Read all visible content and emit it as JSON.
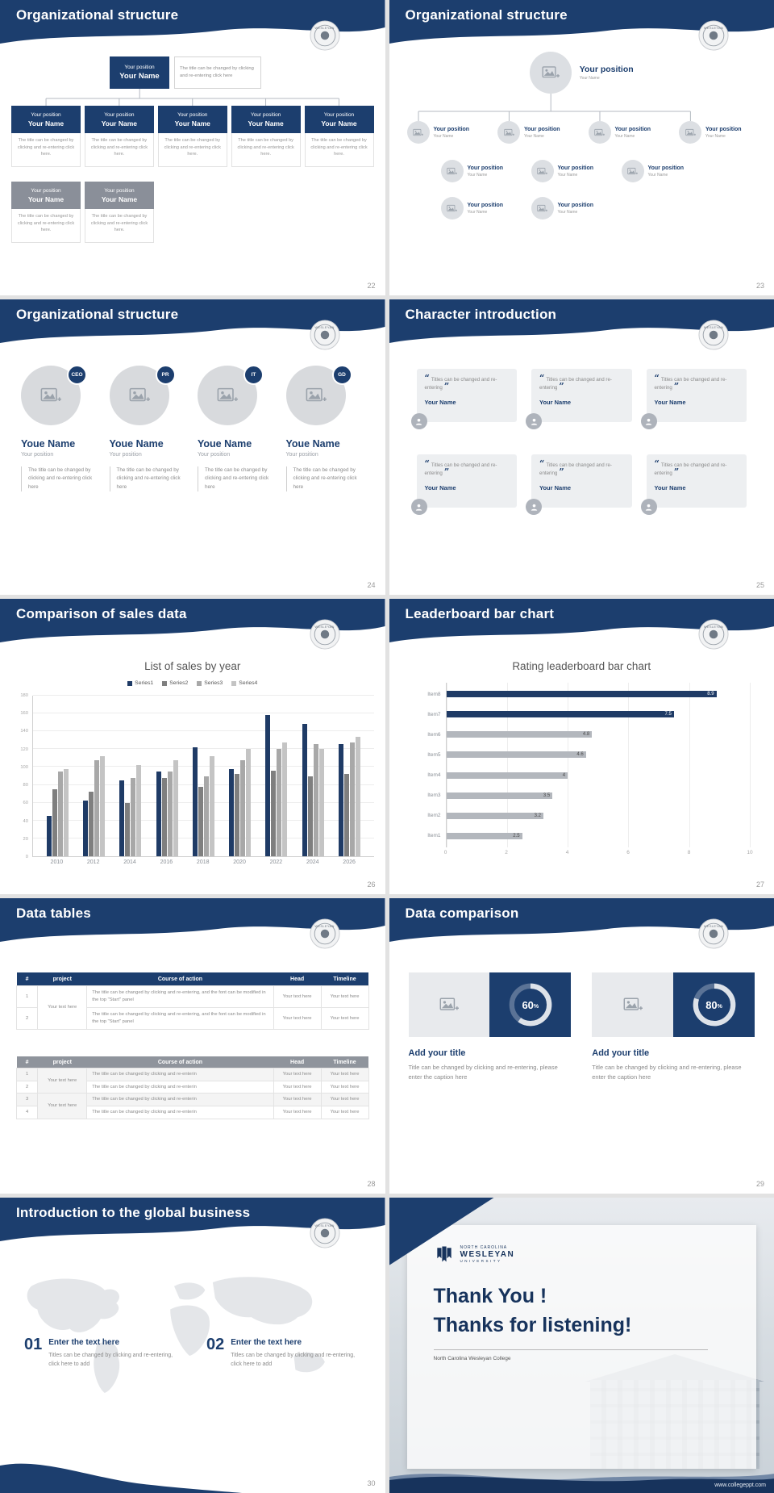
{
  "theme": {
    "navy": "#1c3e6e",
    "navy_dark": "#17335c",
    "gray_box": "#8a8f99",
    "card_bg": "#edeff1",
    "page_bg": "#e2e2e2"
  },
  "seal": {
    "label": "WESLEYAN"
  },
  "slides": {
    "org_boxes": {
      "title": "Organizational structure",
      "page": "22",
      "root": {
        "position": "Your position",
        "name": "Your Name"
      },
      "root_note": "The title can be changed by clicking and re-entering click here",
      "level1": [
        {
          "position": "Your position",
          "name": "Your Name",
          "note": "The title can be changed by clicking and re-entering click here."
        },
        {
          "position": "Your position",
          "name": "Your Name",
          "note": "The title can be changed by clicking and re-entering click here."
        },
        {
          "position": "Your position",
          "name": "Your Name",
          "note": "The title can be changed by clicking and re-entering click here."
        },
        {
          "position": "Your position",
          "name": "Your Name",
          "note": "The title can be changed by clicking and re-entering click here."
        },
        {
          "position": "Your position",
          "name": "Your Name",
          "note": "The title can be changed by clicking and re-entering click here."
        }
      ],
      "level2": [
        {
          "position": "Your position",
          "name": "Your Name",
          "note": "The title can be changed by clicking and re-entering click here."
        },
        {
          "position": "Your position",
          "name": "Your Name",
          "note": "The title can be changed by clicking and re-entering click here."
        }
      ]
    },
    "org_photos": {
      "title": "Organizational structure",
      "page": "23",
      "root": {
        "position": "Your position",
        "name": "Your Name"
      },
      "level1": [
        {
          "position": "Your position",
          "name": "Your Name"
        },
        {
          "position": "Your position",
          "name": "Your Name"
        },
        {
          "position": "Your position",
          "name": "Your Name"
        },
        {
          "position": "Your position",
          "name": "Your Name"
        }
      ],
      "level2": [
        {
          "position": "Your position",
          "name": "Your Name"
        },
        {
          "position": "Your position",
          "name": "Your Name"
        },
        {
          "position": "Your position",
          "name": "Your Name"
        }
      ],
      "level3": [
        {
          "position": "Your position",
          "name": "Your Name"
        },
        {
          "position": "Your position",
          "name": "Your Name"
        }
      ]
    },
    "org_team": {
      "title": "Organizational structure",
      "page": "24",
      "members": [
        {
          "badge": "CEO",
          "name": "Youe Name",
          "position": "Your position",
          "note": "The title can be changed by clicking and re-entering click here"
        },
        {
          "badge": "PR",
          "name": "Youe Name",
          "position": "Your position",
          "note": "The title can be changed by clicking and re-entering click here"
        },
        {
          "badge": "IT",
          "name": "Youe Name",
          "position": "Your position",
          "note": "The title can be changed by clicking and re-entering click here"
        },
        {
          "badge": "GD",
          "name": "Youe Name",
          "position": "Your position",
          "note": "The title can be changed by clicking and re-entering click here"
        }
      ]
    },
    "characters": {
      "title": "Character introduction",
      "page": "25",
      "cards": [
        {
          "quote": "Titles can be changed and re-entering",
          "name": "Your Name"
        },
        {
          "quote": "Titles can be changed and re-entering",
          "name": "Your Name"
        },
        {
          "quote": "Titles can be changed and re-entering",
          "name": "Your Name"
        },
        {
          "quote": "Titles can be changed and re-entering",
          "name": "Your Name"
        },
        {
          "quote": "Titles can be changed and re-entering",
          "name": "Your Name"
        },
        {
          "quote": "Titles can be changed and re-entering",
          "name": "Your Name"
        }
      ]
    },
    "sales": {
      "title": "Comparison of sales data",
      "page": "26"
    },
    "leaderboard": {
      "title": "Leaderboard bar chart",
      "page": "27"
    },
    "tables": {
      "title": "Data tables",
      "page": "28",
      "table1": {
        "headers": [
          "#",
          "project",
          "Course of action",
          "Head",
          "Timeline"
        ],
        "project_merged": "Your text here",
        "rows": [
          {
            "num": "1",
            "course": "The title can be changed by clicking and re-entering, and the font can be modified in the top \"Start\" panel",
            "head": "Your text here",
            "timeline": "Your text here"
          },
          {
            "num": "2",
            "course": "The title can be changed by clicking and re-entering, and the font can be modified in the top \"Start\" panel",
            "head": "Your text here",
            "timeline": "Your text here"
          }
        ]
      },
      "table2": {
        "headers": [
          "#",
          "project",
          "Course of action",
          "Head",
          "Timeline"
        ],
        "project_merged_a": "Your text here",
        "project_merged_b": "Your text here",
        "rows": [
          {
            "num": "1",
            "course": "The title can be changed by clicking and re-enterin",
            "head": "Your text here",
            "timeline": "Your text here"
          },
          {
            "num": "2",
            "course": "The title can be changed by clicking and re-enterin",
            "head": "Your text here",
            "timeline": "Your text here"
          },
          {
            "num": "3",
            "course": "The title can be changed by clicking and re-enterin",
            "head": "Your text here",
            "timeline": "Your text here"
          },
          {
            "num": "4",
            "course": "The title can be changed by clicking and re-enterin",
            "head": "Your text here",
            "timeline": "Your text here"
          }
        ]
      }
    },
    "datacomp": {
      "title": "Data comparison",
      "page": "29",
      "percent_suffix": "%",
      "panels": [
        {
          "percent": 60,
          "heading": "Add your title",
          "caption": "Title can be changed by clicking and re-entering, please enter the caption here"
        },
        {
          "percent": 80,
          "heading": "Add your title",
          "caption": "Title can be changed by clicking and re-entering, please enter the caption here"
        }
      ]
    },
    "global": {
      "title": "Introduction to the global business",
      "page": "30",
      "items": [
        {
          "num": "01",
          "heading": "Enter the text here",
          "caption": "Titles can be changed by clicking and re-entering, click here to add"
        },
        {
          "num": "02",
          "heading": "Enter the text here",
          "caption": "Titles can be changed by clicking and re-entering, click here to add"
        }
      ]
    },
    "thanks": {
      "logo_top": "NORTH CAROLINA",
      "logo_main": "WESLEYAN",
      "logo_sub": "UNIVERSITY",
      "line1": "Thank You !",
      "line2": "Thanks for listening!",
      "college": "North Carolina Wesleyan College",
      "url": "www.collegeppt.com"
    }
  },
  "chart_data": [
    {
      "type": "bar",
      "title": "List of sales by year",
      "categories": [
        "2010",
        "2012",
        "2014",
        "2016",
        "2018",
        "2020",
        "2022",
        "2024",
        "2026"
      ],
      "series": [
        {
          "name": "Series1",
          "color": "#1f3b66",
          "values": [
            45,
            62,
            85,
            95,
            122,
            98,
            158,
            148,
            126
          ]
        },
        {
          "name": "Series2",
          "color": "#7f7f7f",
          "values": [
            75,
            72,
            60,
            88,
            78,
            92,
            96,
            90,
            92
          ]
        },
        {
          "name": "Series3",
          "color": "#a8a8a8",
          "values": [
            95,
            108,
            88,
            95,
            90,
            108,
            120,
            126,
            128
          ]
        },
        {
          "name": "Series4",
          "color": "#c4c4c4",
          "values": [
            98,
            112,
            102,
            108,
            112,
            120,
            128,
            120,
            134
          ]
        }
      ],
      "ylim": [
        0,
        180
      ],
      "ytick_step": 20,
      "legend_position": "top",
      "grid": true
    },
    {
      "type": "bar-horizontal",
      "title": "Rating leaderboard bar chart",
      "categories": [
        "Item8",
        "Item7",
        "Item6",
        "Item5",
        "Item4",
        "Item3",
        "Item2",
        "Item1"
      ],
      "values": [
        8.9,
        7.5,
        4.8,
        4.6,
        4,
        3.5,
        3.2,
        2.5
      ],
      "highlight_count": 2,
      "highlight_color": "#1f3b66",
      "bar_color": "#b3b7bd",
      "xlim": [
        0,
        10
      ],
      "xtick_step": 2,
      "grid": true
    }
  ]
}
